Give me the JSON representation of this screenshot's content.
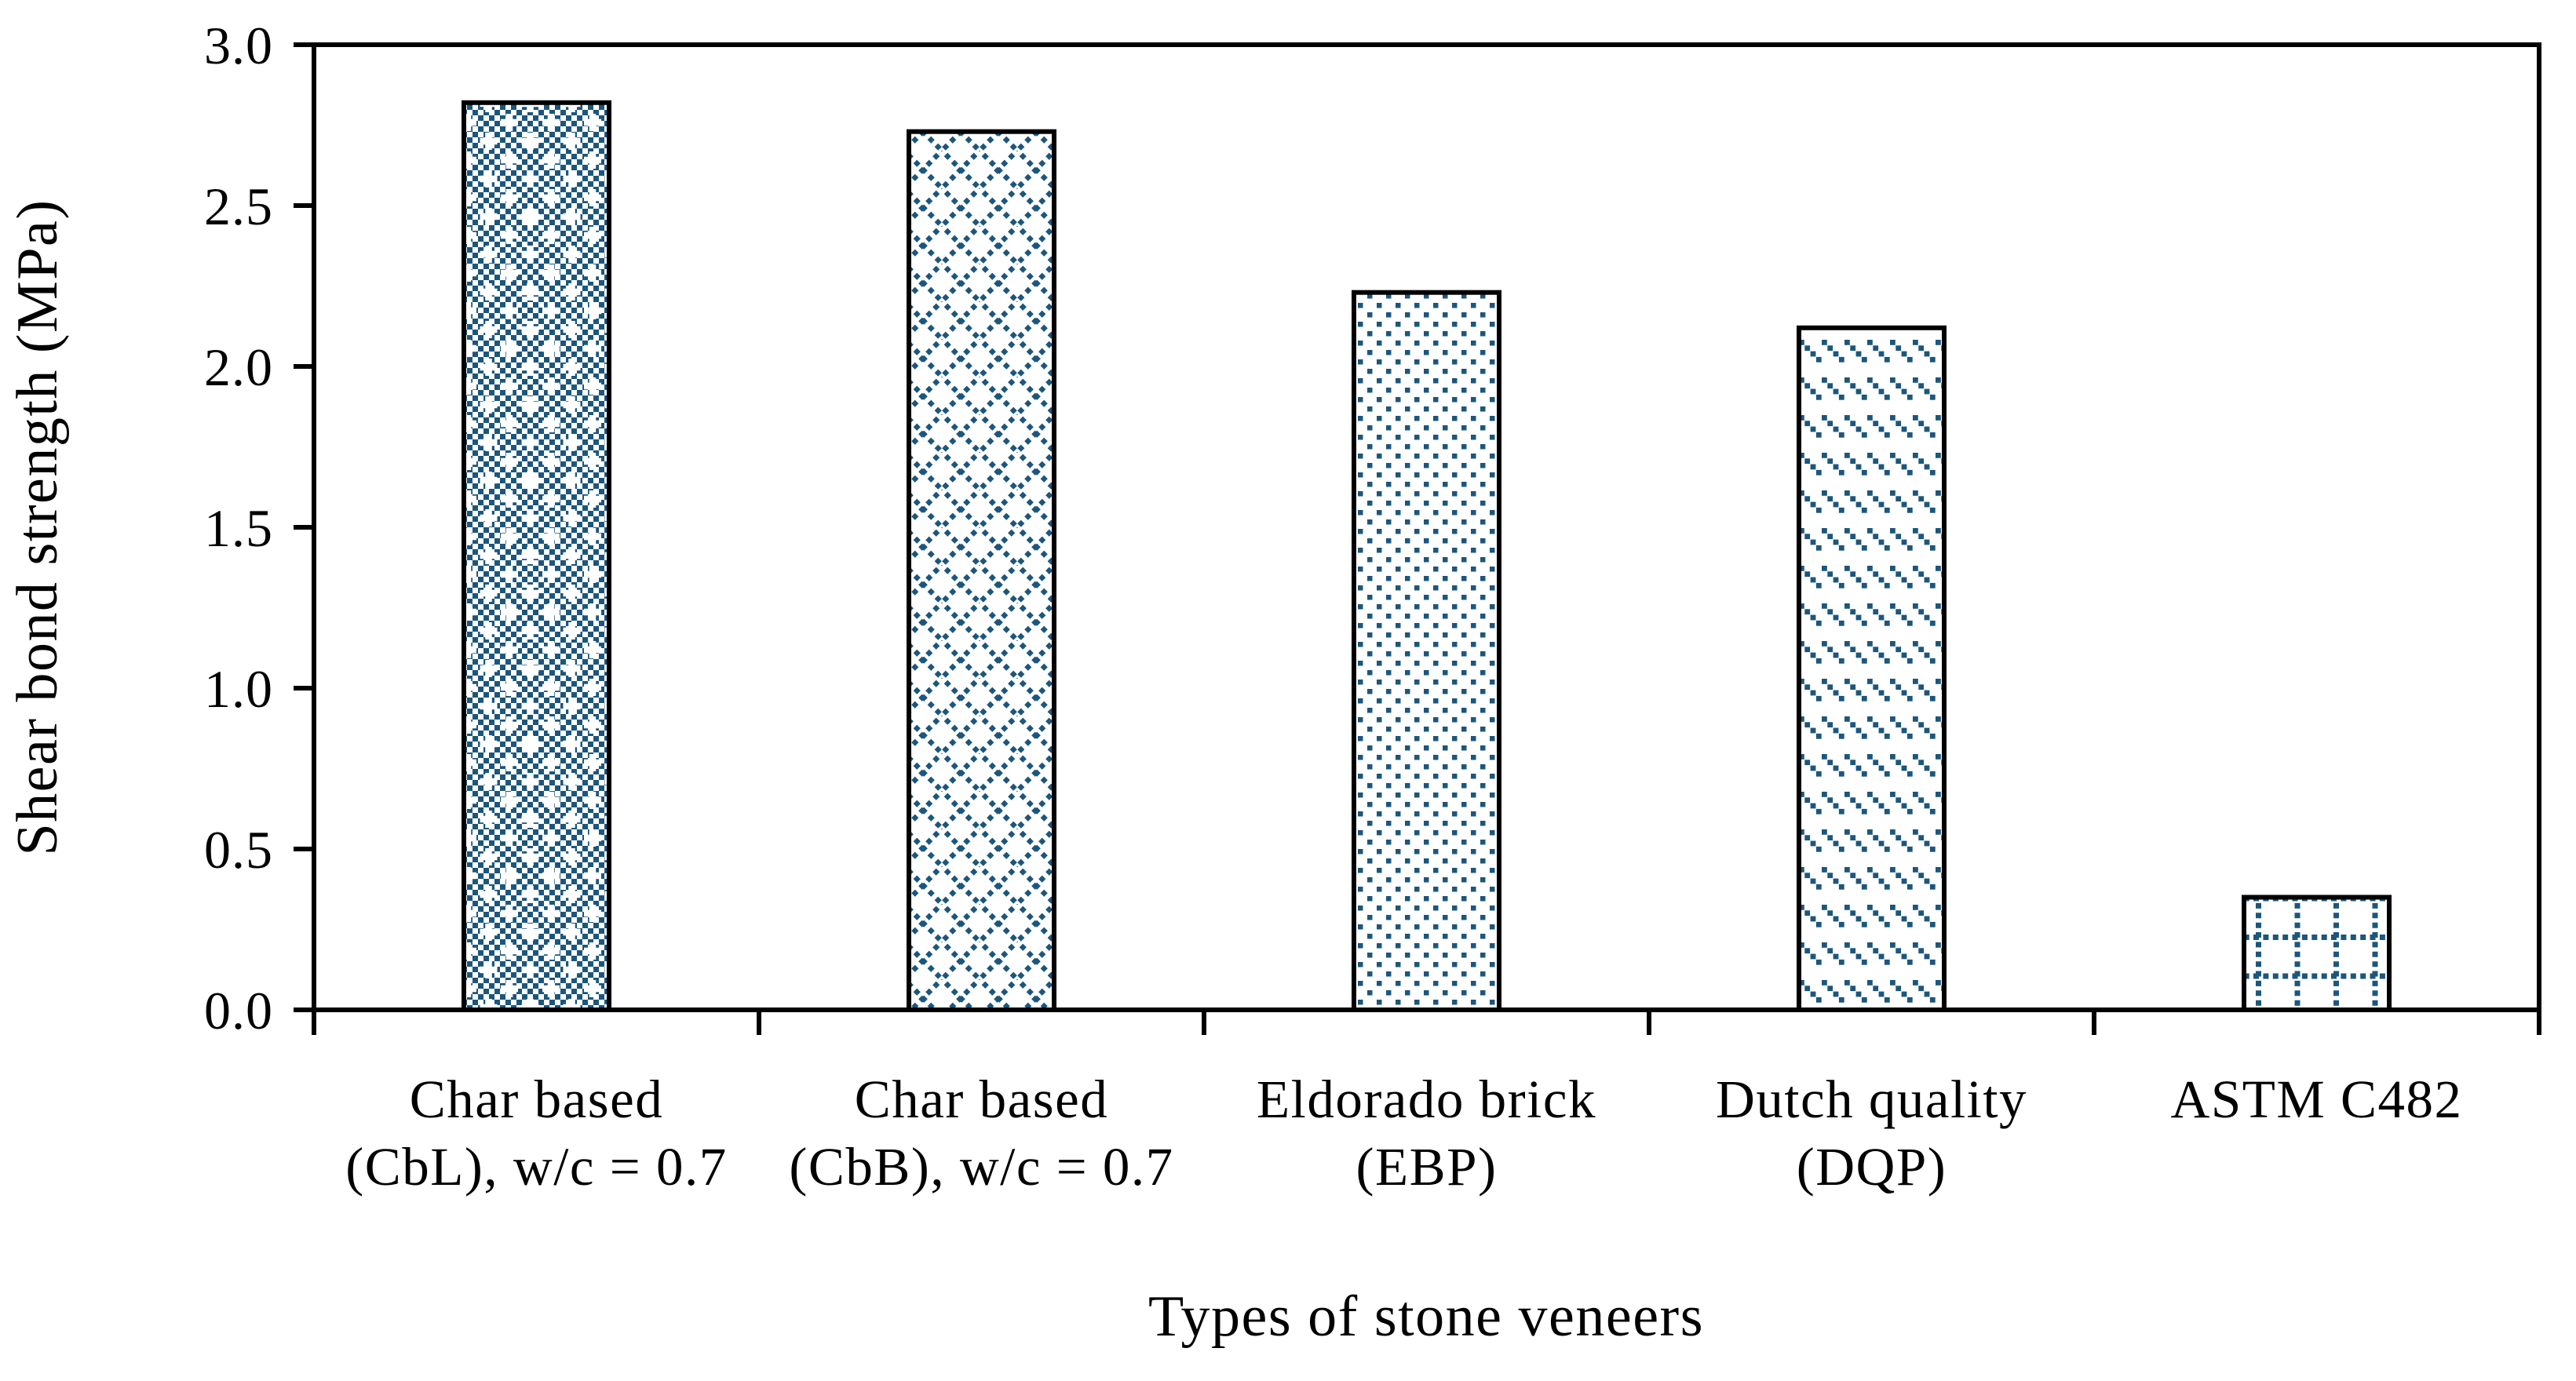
{
  "figure": {
    "background_color": "#ffffff",
    "axis_color": "#000000",
    "bar_border_color": "#000000",
    "pattern_color": "#1c567c",
    "pattern_bg_color": "#ffffff"
  },
  "chart_data": {
    "type": "bar",
    "title": "",
    "xlabel": "Types of stone veneers",
    "ylabel": "Shear bond strength (MPa)",
    "ylim": [
      0.0,
      3.0
    ],
    "ytick_interval": 0.5,
    "yticks": [
      "0.0",
      "0.5",
      "1.0",
      "1.5",
      "2.0",
      "2.5",
      "3.0"
    ],
    "grid": false,
    "legend_position": "none",
    "categories": [
      {
        "label": "Char based\n(CbL), w/c = 0.7",
        "value": 2.82,
        "texture": "dense-checker-with-plus"
      },
      {
        "label": "Char based\n(CbB), w/c = 0.7",
        "value": 2.73,
        "texture": "diamond-dot-lattice"
      },
      {
        "label": "Eldorado brick\n(EBP)",
        "value": 2.23,
        "texture": "sparse-dots"
      },
      {
        "label": "Dutch quality\n(DQP)",
        "value": 2.12,
        "texture": "dashed-diagonal"
      },
      {
        "label": "ASTM C482",
        "value": 0.35,
        "texture": "dotted-grid"
      }
    ]
  }
}
